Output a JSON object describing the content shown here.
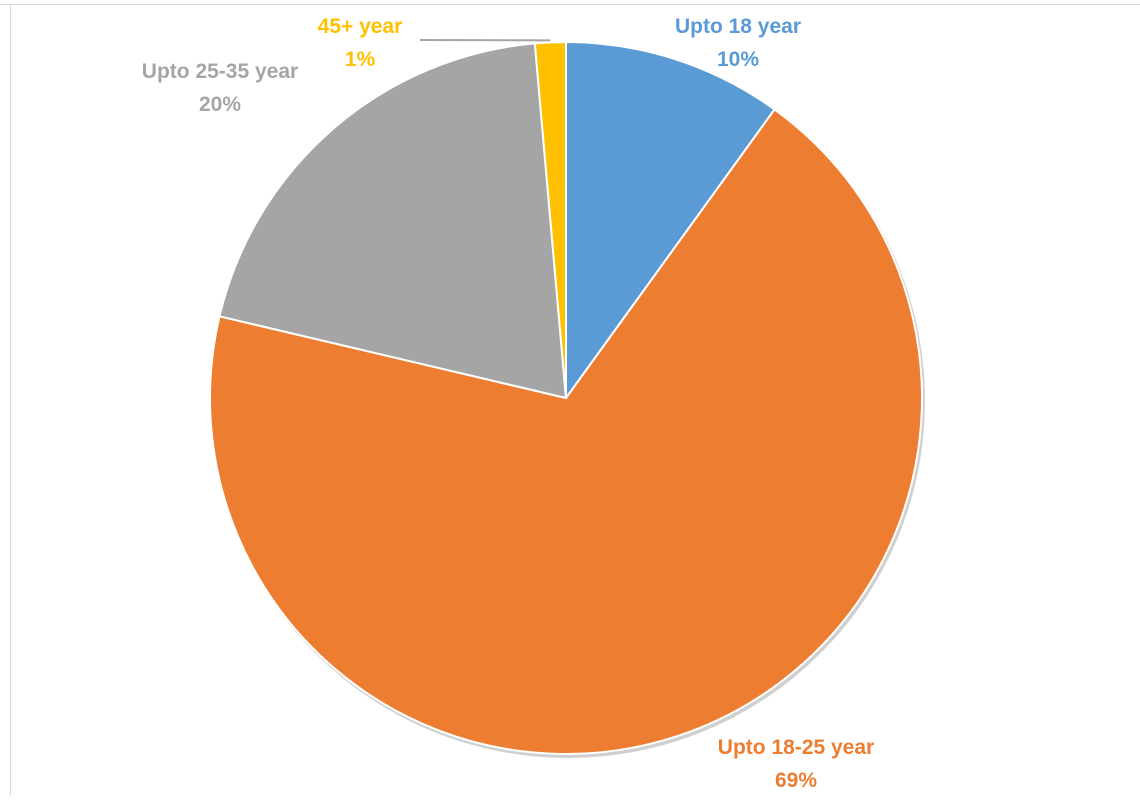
{
  "chart_data": {
    "type": "pie",
    "title": "",
    "slices": [
      {
        "label": "Upto 18 year",
        "percent_label": "10%",
        "value": 10,
        "color": "#5b9bd5"
      },
      {
        "label": "Upto 18-25 year",
        "percent_label": "69%",
        "value": 69,
        "color": "#ed7d31"
      },
      {
        "label": "Upto 25-35 year",
        "percent_label": "20%",
        "value": 20,
        "color": "#a5a5a5"
      },
      {
        "label": "45+ year",
        "percent_label": "1%",
        "value": 1.4,
        "color": "#ffc000"
      }
    ],
    "start_angle_deg": 0,
    "direction": "clockwise",
    "legend": "none",
    "data_labels": "outside"
  }
}
